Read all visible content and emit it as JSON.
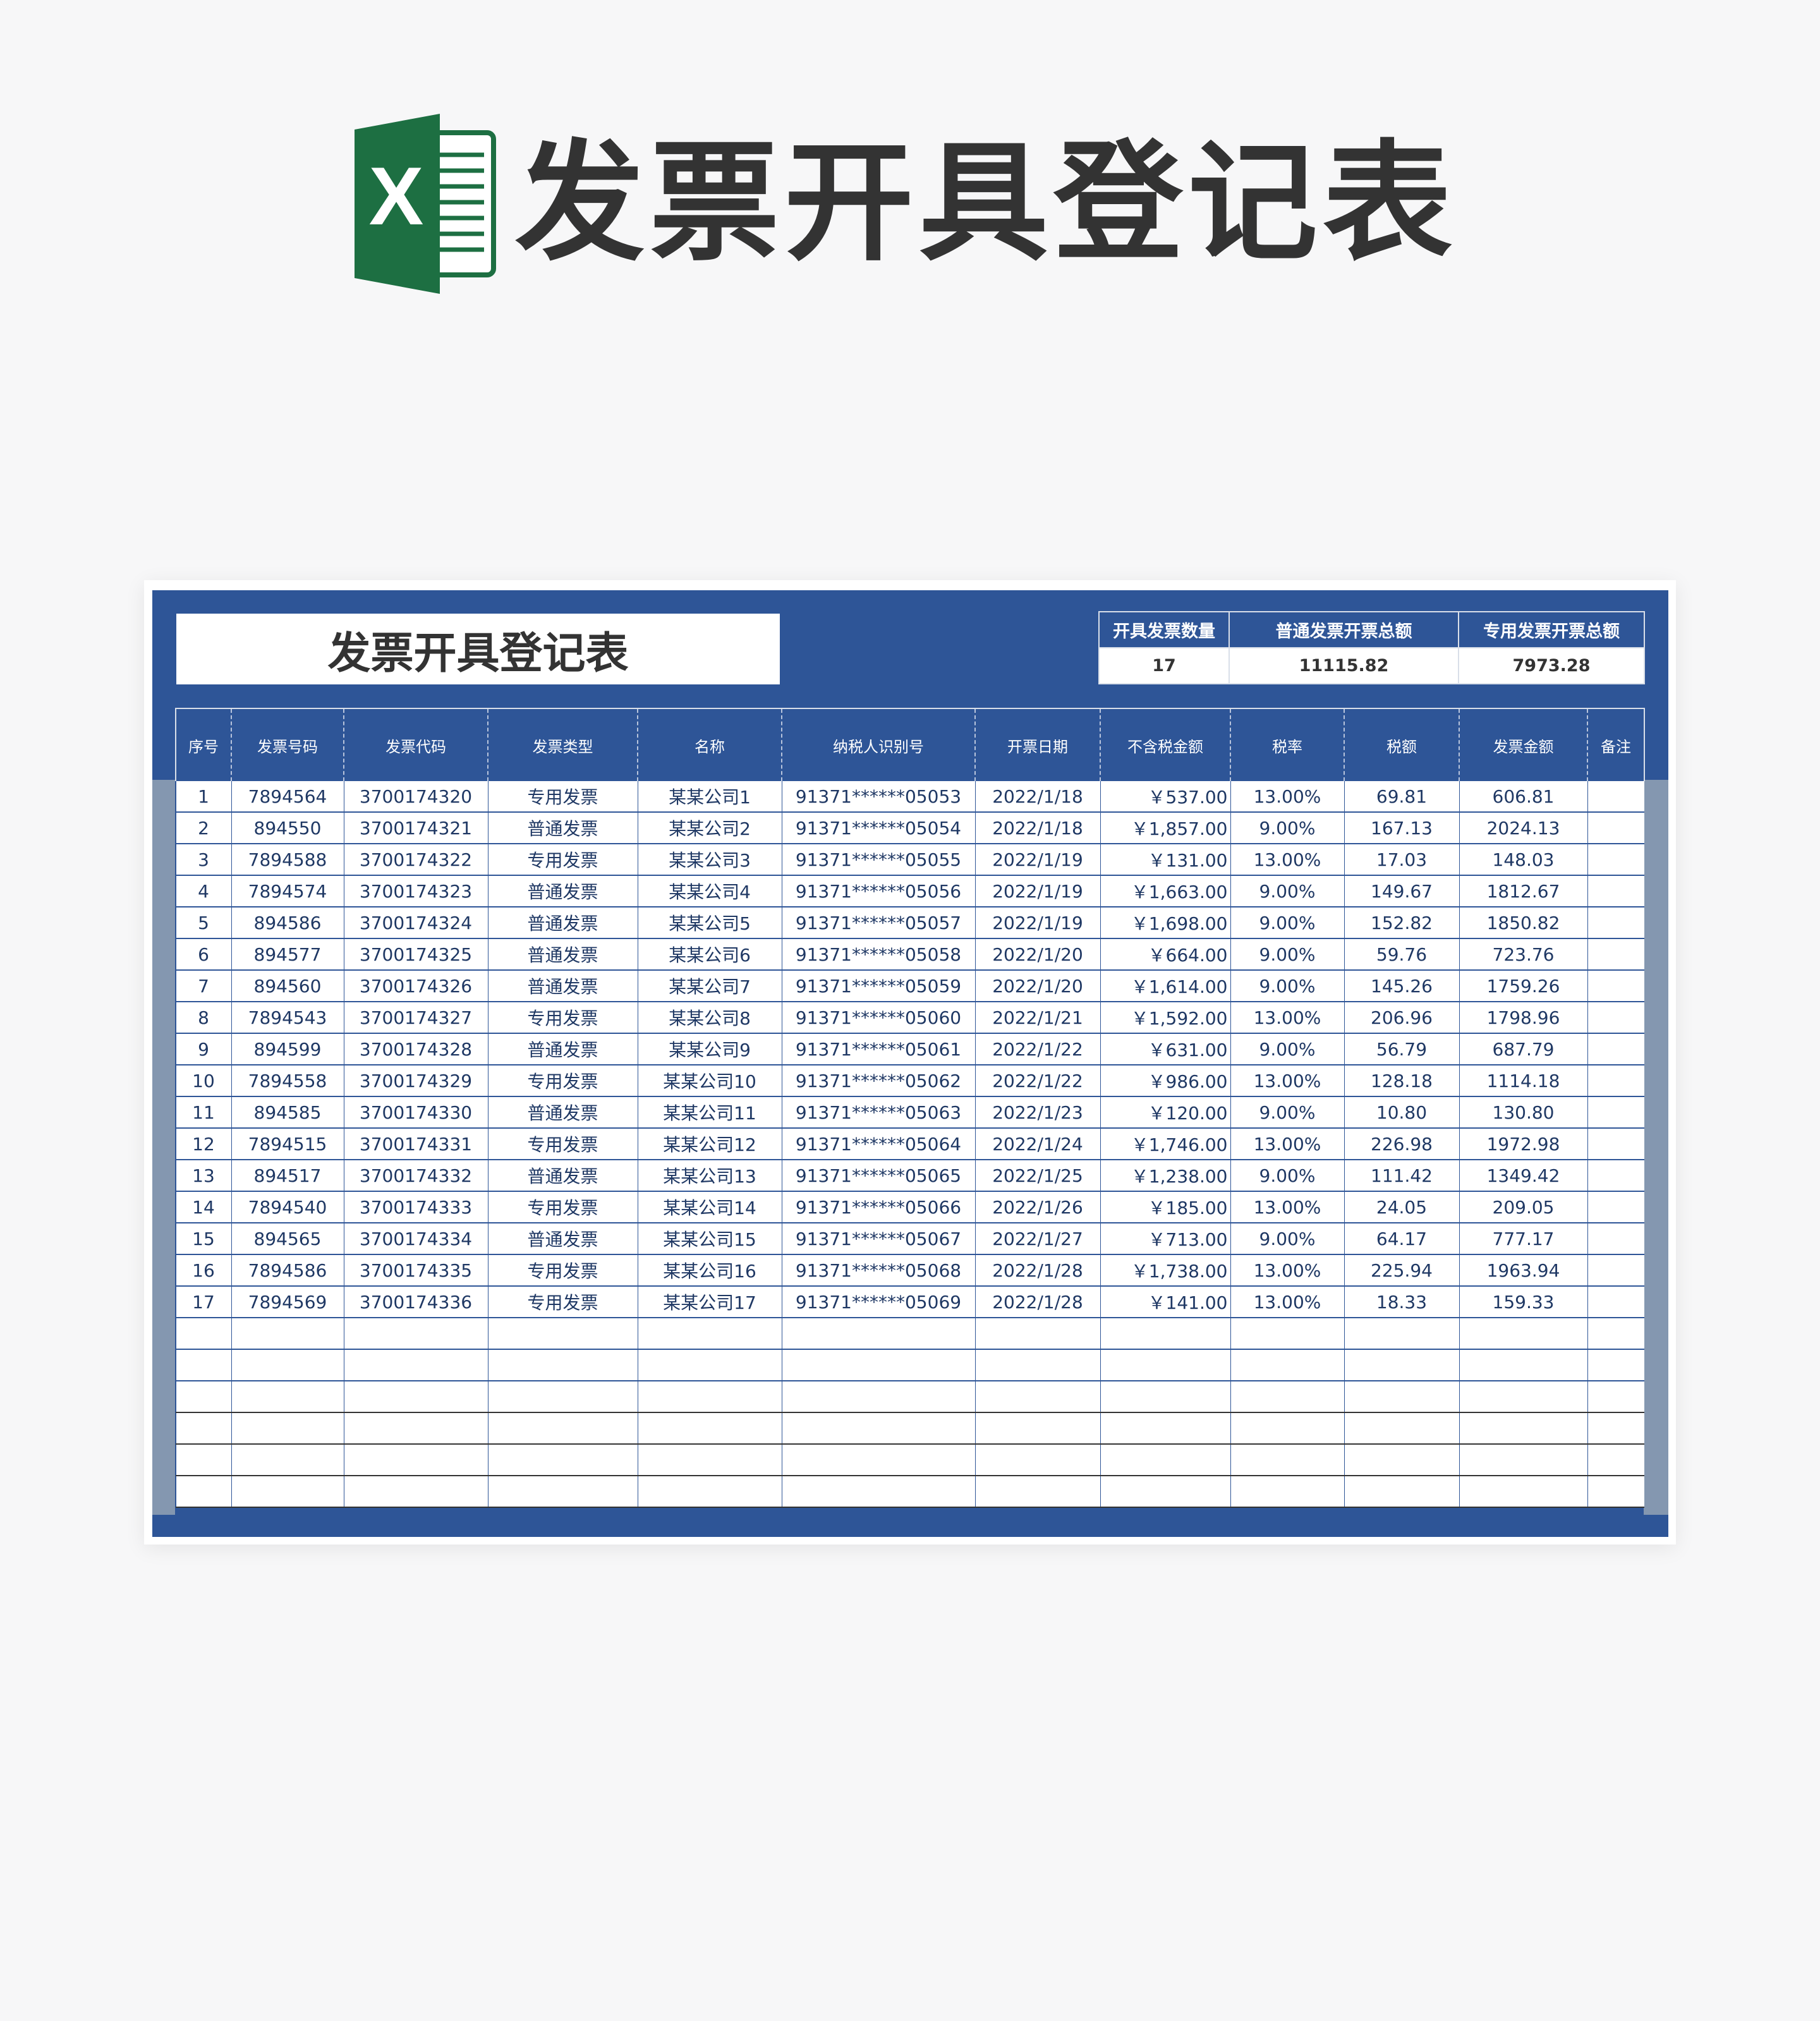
{
  "page_title": "发票开具登记表",
  "logo_icon": "excel-logo-icon",
  "colors": {
    "panel_blue": "#2e5597",
    "side_grey": "#8497b0",
    "excel_green": "#1d6f42"
  },
  "sheet_title": "发票开具登记表",
  "summary": {
    "headers": [
      "开具发票数量",
      "普通发票开票总额",
      "专用发票开票总额"
    ],
    "values": [
      "17",
      "11115.82",
      "7973.28"
    ]
  },
  "table": {
    "columns": [
      "序号",
      "发票号码",
      "发票代码",
      "发票类型",
      "名称",
      "纳税人识别号",
      "开票日期",
      "不含税金额",
      "税率",
      "税额",
      "发票金额",
      "备注"
    ],
    "rows": [
      [
        "1",
        "7894564",
        "3700174320",
        "专用发票",
        "某某公司1",
        "91371******05053",
        "2022/1/18",
        "￥537.00",
        "13.00%",
        "69.81",
        "606.81",
        ""
      ],
      [
        "2",
        "894550",
        "3700174321",
        "普通发票",
        "某某公司2",
        "91371******05054",
        "2022/1/18",
        "￥1,857.00",
        "9.00%",
        "167.13",
        "2024.13",
        ""
      ],
      [
        "3",
        "7894588",
        "3700174322",
        "专用发票",
        "某某公司3",
        "91371******05055",
        "2022/1/19",
        "￥131.00",
        "13.00%",
        "17.03",
        "148.03",
        ""
      ],
      [
        "4",
        "7894574",
        "3700174323",
        "普通发票",
        "某某公司4",
        "91371******05056",
        "2022/1/19",
        "￥1,663.00",
        "9.00%",
        "149.67",
        "1812.67",
        ""
      ],
      [
        "5",
        "894586",
        "3700174324",
        "普通发票",
        "某某公司5",
        "91371******05057",
        "2022/1/19",
        "￥1,698.00",
        "9.00%",
        "152.82",
        "1850.82",
        ""
      ],
      [
        "6",
        "894577",
        "3700174325",
        "普通发票",
        "某某公司6",
        "91371******05058",
        "2022/1/20",
        "￥664.00",
        "9.00%",
        "59.76",
        "723.76",
        ""
      ],
      [
        "7",
        "894560",
        "3700174326",
        "普通发票",
        "某某公司7",
        "91371******05059",
        "2022/1/20",
        "￥1,614.00",
        "9.00%",
        "145.26",
        "1759.26",
        ""
      ],
      [
        "8",
        "7894543",
        "3700174327",
        "专用发票",
        "某某公司8",
        "91371******05060",
        "2022/1/21",
        "￥1,592.00",
        "13.00%",
        "206.96",
        "1798.96",
        ""
      ],
      [
        "9",
        "894599",
        "3700174328",
        "普通发票",
        "某某公司9",
        "91371******05061",
        "2022/1/22",
        "￥631.00",
        "9.00%",
        "56.79",
        "687.79",
        ""
      ],
      [
        "10",
        "7894558",
        "3700174329",
        "专用发票",
        "某某公司10",
        "91371******05062",
        "2022/1/22",
        "￥986.00",
        "13.00%",
        "128.18",
        "1114.18",
        ""
      ],
      [
        "11",
        "894585",
        "3700174330",
        "普通发票",
        "某某公司11",
        "91371******05063",
        "2022/1/23",
        "￥120.00",
        "9.00%",
        "10.80",
        "130.80",
        ""
      ],
      [
        "12",
        "7894515",
        "3700174331",
        "专用发票",
        "某某公司12",
        "91371******05064",
        "2022/1/24",
        "￥1,746.00",
        "13.00%",
        "226.98",
        "1972.98",
        ""
      ],
      [
        "13",
        "894517",
        "3700174332",
        "普通发票",
        "某某公司13",
        "91371******05065",
        "2022/1/25",
        "￥1,238.00",
        "9.00%",
        "111.42",
        "1349.42",
        ""
      ],
      [
        "14",
        "7894540",
        "3700174333",
        "专用发票",
        "某某公司14",
        "91371******05066",
        "2022/1/26",
        "￥185.00",
        "13.00%",
        "24.05",
        "209.05",
        ""
      ],
      [
        "15",
        "894565",
        "3700174334",
        "普通发票",
        "某某公司15",
        "91371******05067",
        "2022/1/27",
        "￥713.00",
        "9.00%",
        "64.17",
        "777.17",
        ""
      ],
      [
        "16",
        "7894586",
        "3700174335",
        "专用发票",
        "某某公司16",
        "91371******05068",
        "2022/1/28",
        "￥1,738.00",
        "13.00%",
        "225.94",
        "1963.94",
        ""
      ],
      [
        "17",
        "7894569",
        "3700174336",
        "专用发票",
        "某某公司17",
        "91371******05069",
        "2022/1/28",
        "￥141.00",
        "13.00%",
        "18.33",
        "159.33",
        ""
      ]
    ]
  }
}
